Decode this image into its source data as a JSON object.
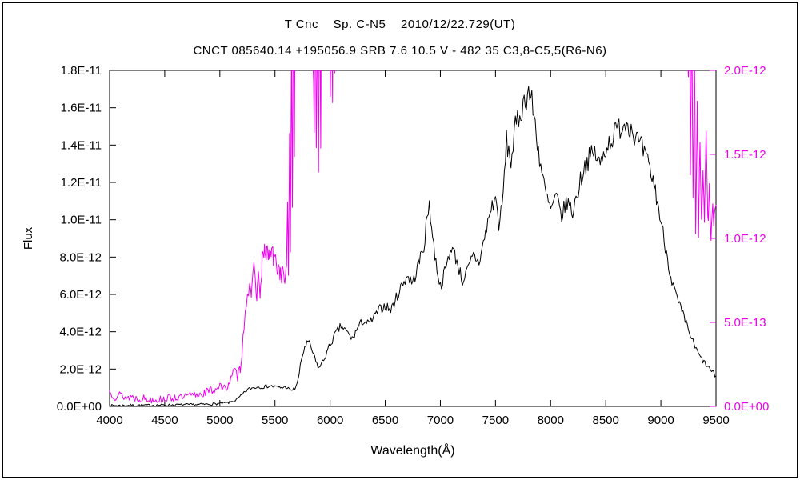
{
  "title": "T Cnc    Sp. C-N5    2010/12/22.729(UT)",
  "subtitle": "CNCT 085640.14 +195056.9 SRB 7.6 10.5 V - 482 35 C3,8-C5,5(R6-N6)",
  "colors": {
    "frame": "#000000",
    "black_series": "#000000",
    "magenta_series": "#ee00ee"
  },
  "chart_data": {
    "type": "line",
    "title": "T Cnc    Sp. C-N5    2010/12/22.729(UT)",
    "subtitle": "CNCT 085640.14 +195056.9 SRB 7.6 10.5 V - 482 35 C3,8-C5,5(R6-N6)",
    "xlabel": "Wavelength(Å)",
    "x_range": [
      4000,
      9500
    ],
    "x_tick_labels": [
      "4000",
      "4500",
      "5000",
      "5500",
      "6000",
      "6500",
      "7000",
      "7500",
      "8000",
      "8500",
      "9000",
      "9500"
    ],
    "grid": false,
    "legend": "none",
    "left_axis": {
      "label": "Flux",
      "range": [
        0,
        1.8e-11
      ],
      "tick_labels": [
        "0.0E+00",
        "2.0E-12",
        "4.0E-12",
        "6.0E-12",
        "8.0E-12",
        "1.0E-11",
        "1.2E-11",
        "1.4E-11",
        "1.6E-11",
        "1.8E-11"
      ],
      "color": "#000000"
    },
    "right_axis": {
      "range": [
        0,
        2e-12
      ],
      "tick_labels": [
        "0.0E+00",
        "5.0E-13",
        "1.0E-12",
        "1.5E-12",
        "2.0E-12"
      ],
      "color": "#ee00ee"
    },
    "series": [
      {
        "name": "spectrum-black",
        "axis": "left",
        "color": "#000000",
        "unit": 1e-12,
        "seed": 7,
        "noise_abs": 0.06,
        "noise_rel": 0.04,
        "points": [
          [
            4000,
            0.05
          ],
          [
            4100,
            0.05
          ],
          [
            4200,
            0.06
          ],
          [
            4300,
            0.06
          ],
          [
            4400,
            0.07
          ],
          [
            4500,
            0.07
          ],
          [
            4600,
            0.08
          ],
          [
            4700,
            0.09
          ],
          [
            4800,
            0.1
          ],
          [
            4900,
            0.12
          ],
          [
            5000,
            0.15
          ],
          [
            5080,
            0.2
          ],
          [
            5150,
            0.35
          ],
          [
            5200,
            0.6
          ],
          [
            5250,
            0.9
          ],
          [
            5300,
            1.0
          ],
          [
            5350,
            1.05
          ],
          [
            5400,
            1.05
          ],
          [
            5450,
            1.1
          ],
          [
            5500,
            1.05
          ],
          [
            5550,
            1.0
          ],
          [
            5600,
            1.05
          ],
          [
            5640,
            0.85
          ],
          [
            5680,
            0.95
          ],
          [
            5710,
            1.4
          ],
          [
            5740,
            2.5
          ],
          [
            5770,
            3.2
          ],
          [
            5800,
            3.45
          ],
          [
            5830,
            3.1
          ],
          [
            5870,
            2.4
          ],
          [
            5900,
            2.05
          ],
          [
            5950,
            2.6
          ],
          [
            6000,
            3.3
          ],
          [
            6050,
            3.9
          ],
          [
            6100,
            4.3
          ],
          [
            6150,
            4.0
          ],
          [
            6200,
            3.6
          ],
          [
            6250,
            4.2
          ],
          [
            6300,
            4.6
          ],
          [
            6350,
            4.4
          ],
          [
            6400,
            4.8
          ],
          [
            6450,
            5.2
          ],
          [
            6500,
            5.4
          ],
          [
            6550,
            5.15
          ],
          [
            6600,
            5.8
          ],
          [
            6650,
            6.5
          ],
          [
            6700,
            7.0
          ],
          [
            6750,
            6.6
          ],
          [
            6800,
            7.6
          ],
          [
            6850,
            8.6
          ],
          [
            6880,
            10.0
          ],
          [
            6900,
            11.0
          ],
          [
            6920,
            9.6
          ],
          [
            6950,
            8.1
          ],
          [
            7000,
            6.4
          ],
          [
            7050,
            7.4
          ],
          [
            7100,
            8.6
          ],
          [
            7150,
            7.8
          ],
          [
            7200,
            6.7
          ],
          [
            7250,
            7.3
          ],
          [
            7300,
            8.1
          ],
          [
            7350,
            7.7
          ],
          [
            7400,
            9.0
          ],
          [
            7450,
            10.4
          ],
          [
            7500,
            11.2
          ],
          [
            7530,
            9.8
          ],
          [
            7560,
            10.6
          ],
          [
            7600,
            14.2
          ],
          [
            7640,
            13.1
          ],
          [
            7680,
            14.9
          ],
          [
            7720,
            15.6
          ],
          [
            7760,
            16.3
          ],
          [
            7800,
            16.9
          ],
          [
            7830,
            16.3
          ],
          [
            7860,
            15.1
          ],
          [
            7900,
            13.3
          ],
          [
            7950,
            11.5
          ],
          [
            8000,
            10.5
          ],
          [
            8050,
            11.2
          ],
          [
            8100,
            10.2
          ],
          [
            8150,
            11.0
          ],
          [
            8200,
            10.4
          ],
          [
            8250,
            11.6
          ],
          [
            8300,
            12.8
          ],
          [
            8350,
            13.3
          ],
          [
            8400,
            13.6
          ],
          [
            8450,
            12.9
          ],
          [
            8500,
            13.9
          ],
          [
            8550,
            14.3
          ],
          [
            8600,
            14.8
          ],
          [
            8650,
            15.1
          ],
          [
            8700,
            15.3
          ],
          [
            8750,
            14.7
          ],
          [
            8800,
            14.1
          ],
          [
            8850,
            13.5
          ],
          [
            8900,
            12.7
          ],
          [
            8950,
            11.6
          ],
          [
            9000,
            9.9
          ],
          [
            9050,
            8.3
          ],
          [
            9100,
            6.7
          ],
          [
            9150,
            5.7
          ],
          [
            9200,
            4.9
          ],
          [
            9250,
            4.1
          ],
          [
            9300,
            3.3
          ],
          [
            9350,
            2.7
          ],
          [
            9400,
            2.3
          ],
          [
            9450,
            1.95
          ],
          [
            9500,
            1.6
          ]
        ]
      },
      {
        "name": "spectrum-magenta",
        "axis": "right",
        "color": "#ee00ee",
        "unit": 1e-13,
        "seed": 13,
        "noise_abs": 0.22,
        "noise_rel": 0.05,
        "points": [
          [
            4000,
            0.9
          ],
          [
            4050,
            0.6
          ],
          [
            4100,
            0.7
          ],
          [
            4150,
            0.5
          ],
          [
            4200,
            0.6
          ],
          [
            4250,
            0.45
          ],
          [
            4300,
            0.5
          ],
          [
            4350,
            0.4
          ],
          [
            4400,
            0.45
          ],
          [
            4450,
            0.4
          ],
          [
            4500,
            0.45
          ],
          [
            4550,
            0.5
          ],
          [
            4600,
            0.55
          ],
          [
            4650,
            0.5
          ],
          [
            4700,
            0.6
          ],
          [
            4750,
            0.65
          ],
          [
            4800,
            0.7
          ],
          [
            4850,
            0.8
          ],
          [
            4900,
            0.9
          ],
          [
            4950,
            1.0
          ],
          [
            5000,
            1.3
          ],
          [
            5030,
            0.95
          ],
          [
            5060,
            1.2
          ],
          [
            5100,
            1.6
          ],
          [
            5130,
            2.1
          ],
          [
            5160,
            1.8
          ],
          [
            5185,
            2.3
          ],
          [
            5210,
            4.0
          ],
          [
            5230,
            5.8
          ],
          [
            5250,
            6.8
          ],
          [
            5270,
            7.3
          ],
          [
            5285,
            6.0
          ],
          [
            5300,
            7.9
          ],
          [
            5320,
            8.4
          ],
          [
            5335,
            6.1
          ],
          [
            5350,
            8.5
          ],
          [
            5365,
            6.3
          ],
          [
            5385,
            8.8
          ],
          [
            5405,
            9.0
          ],
          [
            5425,
            9.3
          ],
          [
            5445,
            8.9
          ],
          [
            5465,
            9.2
          ],
          [
            5485,
            8.8
          ],
          [
            5505,
            8.6
          ],
          [
            5525,
            8.3
          ],
          [
            5545,
            8.0
          ],
          [
            5565,
            7.9
          ],
          [
            5585,
            7.7
          ],
          [
            5605,
            7.9
          ],
          [
            5615,
            12.0
          ],
          [
            5622,
            7.8
          ],
          [
            5632,
            16.0
          ],
          [
            5640,
            9.0
          ],
          [
            5650,
            22.0
          ],
          [
            5658,
            12.5
          ],
          [
            5668,
            26.0
          ],
          [
            5676,
            14.0
          ],
          [
            5686,
            30.0
          ],
          [
            5700,
            32
          ],
          [
            5750,
            34
          ],
          [
            5800,
            33
          ],
          [
            5855,
            17.0
          ],
          [
            5865,
            27.0
          ],
          [
            5875,
            15.0
          ],
          [
            5885,
            24.0
          ],
          [
            5895,
            14.5
          ],
          [
            5905,
            26.0
          ],
          [
            5915,
            16.0
          ],
          [
            5925,
            30.0
          ],
          [
            5950,
            32
          ],
          [
            5990,
            30
          ],
          [
            6002,
            18.5
          ],
          [
            6012,
            27.0
          ],
          [
            6022,
            17.5
          ],
          [
            6032,
            29.0
          ],
          [
            6042,
            19.0
          ],
          [
            6052,
            32.0
          ],
          [
            6100,
            40
          ],
          [
            6500,
            60
          ],
          [
            7000,
            70
          ],
          [
            7500,
            80
          ],
          [
            8000,
            80
          ],
          [
            8500,
            70
          ],
          [
            9000,
            55
          ],
          [
            9200,
            40
          ],
          [
            9238,
            32
          ],
          [
            9248,
            19.0
          ],
          [
            9258,
            28.0
          ],
          [
            9268,
            14.0
          ],
          [
            9280,
            24.0
          ],
          [
            9292,
            12.0
          ],
          [
            9304,
            22.0
          ],
          [
            9316,
            11.0
          ],
          [
            9330,
            18.0
          ],
          [
            9342,
            10.6
          ],
          [
            9355,
            16.0
          ],
          [
            9368,
            11.2
          ],
          [
            9382,
            14.5
          ],
          [
            9395,
            10.4
          ],
          [
            9410,
            15.5
          ],
          [
            9425,
            10.8
          ],
          [
            9440,
            13.5
          ],
          [
            9455,
            10.4
          ],
          [
            9470,
            12.5
          ],
          [
            9485,
            10.8
          ],
          [
            9500,
            11.5
          ]
        ]
      }
    ]
  }
}
